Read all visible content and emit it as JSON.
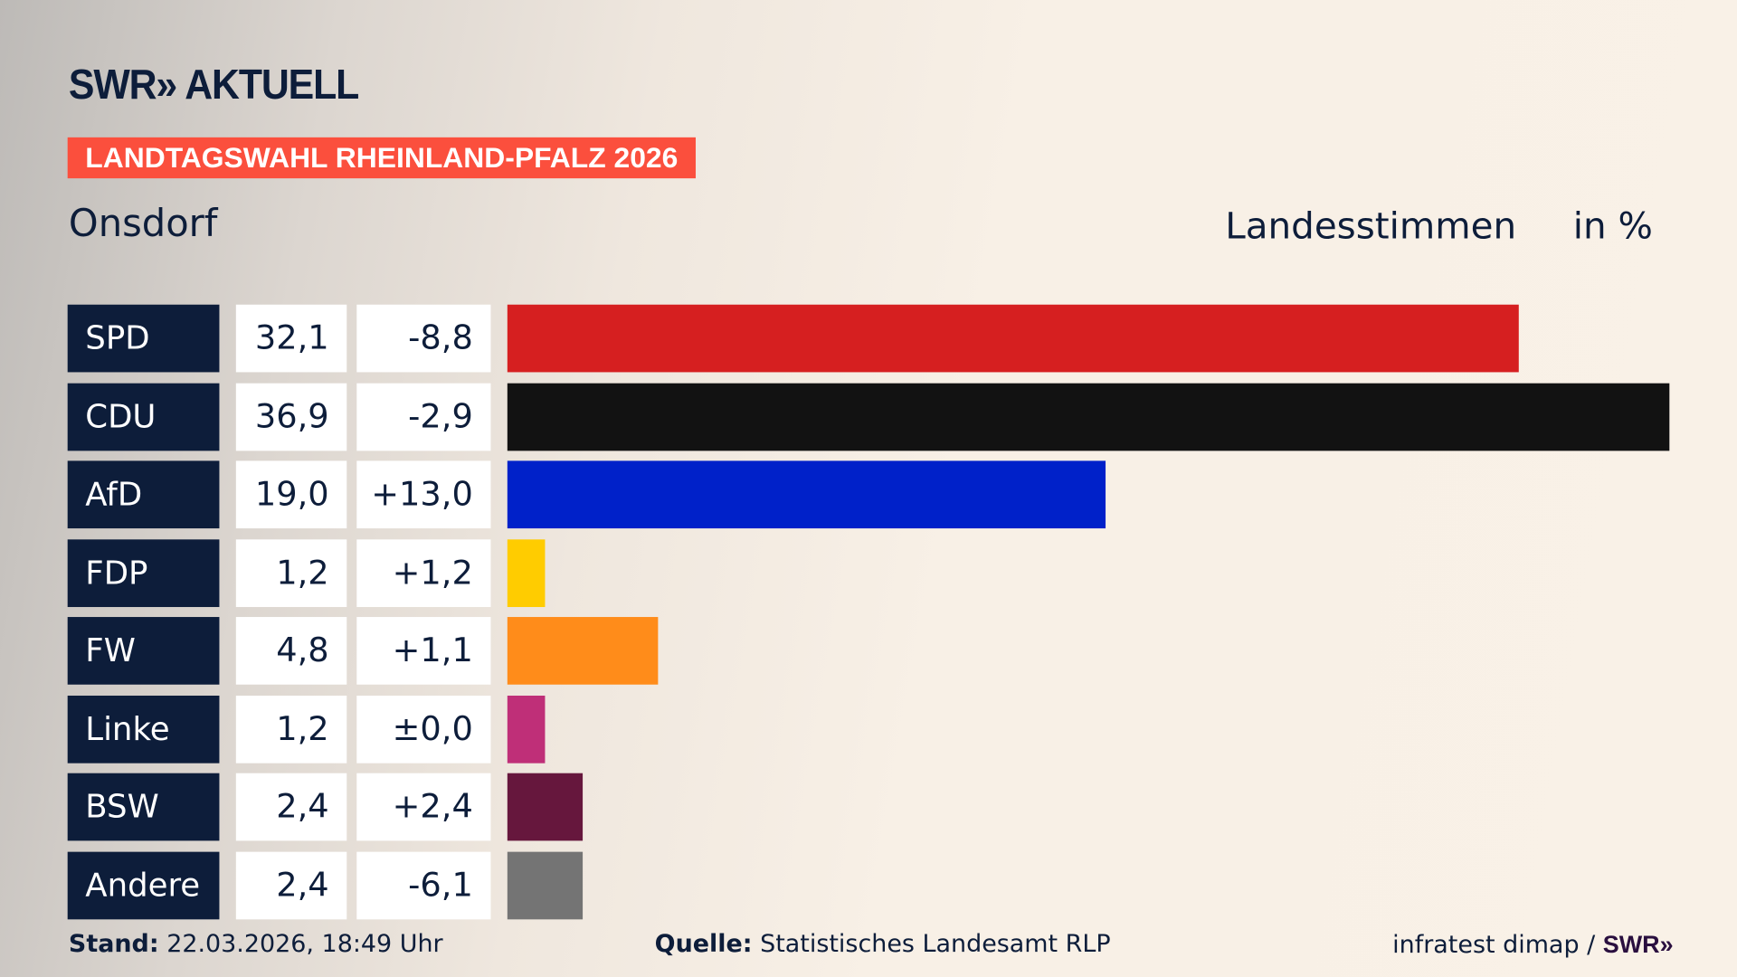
{
  "header": {
    "logo": "SWR» AKTUELL",
    "banner": "LANDTAGSWAHL RHEINLAND-PFALZ 2026",
    "place": "Onsdorf",
    "measure": "Landesstimmen",
    "unit": "in %"
  },
  "chart_data": {
    "type": "bar",
    "orientation": "horizontal",
    "categories": [
      "SPD",
      "CDU",
      "AfD",
      "FDP",
      "FW",
      "Linke",
      "BSW",
      "Andere"
    ],
    "values": [
      32.1,
      36.9,
      19.0,
      1.2,
      4.8,
      1.2,
      2.4,
      2.4
    ],
    "values_label": [
      "32,1",
      "36,9",
      "19,0",
      "1,2",
      "4,8",
      "1,2",
      "2,4",
      "2,4"
    ],
    "changes": [
      -8.8,
      -2.9,
      13.0,
      1.2,
      1.1,
      0.0,
      2.4,
      -6.1
    ],
    "changes_label": [
      "-8,8",
      "-2,9",
      "+13,0",
      "+1,2",
      "+1,1",
      "±0,0",
      "+2,4",
      "-6,1"
    ],
    "colors": [
      "#d61f20",
      "#121212",
      "#0021c9",
      "#ffcc00",
      "#ff8c1a",
      "#bf2f78",
      "#66173d",
      "#747474"
    ],
    "ylabel": "Landesstimmen",
    "unit": "in %"
  },
  "footer": {
    "stand_label": "Stand:",
    "stand": "22.03.2026, 18:49 Uhr",
    "source_label": "Quelle:",
    "source": "Statistisches Landesamt RLP",
    "credit": "infratest dimap /",
    "credit_logo": "SWR»"
  }
}
